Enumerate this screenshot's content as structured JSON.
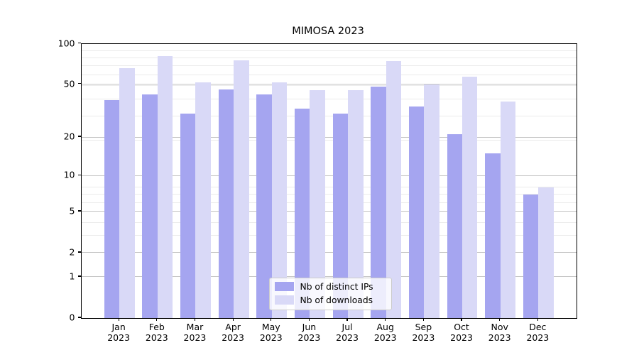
{
  "title": "MIMOSA 2023",
  "chart_data": {
    "type": "bar",
    "title": "MIMOSA 2023",
    "scale": "log1p",
    "categories": [
      "Jan 2023",
      "Feb 2023",
      "Mar 2023",
      "Apr 2023",
      "May 2023",
      "Jun 2023",
      "Jul 2023",
      "Aug 2023",
      "Sep 2023",
      "Oct 2023",
      "Nov 2023",
      "Dec 2023"
    ],
    "series": [
      {
        "name": "Nb of distinct IPs",
        "key": "distinct-ips",
        "color": "#a5a5f0",
        "values": [
          38,
          42,
          30,
          46,
          42,
          33,
          30,
          48,
          34,
          21,
          15,
          7
        ]
      },
      {
        "name": "Nb of downloads",
        "key": "downloads",
        "color": "#d9d9f7",
        "values": [
          66,
          81,
          52,
          75,
          52,
          45,
          45,
          74,
          50,
          57,
          37,
          8
        ]
      }
    ],
    "y_ticks": [
      100,
      50,
      20,
      10,
      5,
      2,
      1,
      0
    ],
    "y_minor_gridlines": [
      1,
      2,
      3,
      4,
      5,
      6,
      7,
      8,
      19,
      29,
      39,
      49,
      59,
      69,
      79,
      89
    ],
    "y_major_gridlines": [
      1,
      2,
      5,
      10,
      20,
      50
    ],
    "ylim": [
      0,
      100
    ],
    "xlabel": "",
    "ylabel": "",
    "grid": "both",
    "legend_position": "lower center"
  },
  "colors": {
    "distinct_ips": "#a5a5f0",
    "downloads": "#d9d9f7",
    "grid_major": "#c4c4c4",
    "grid_minor": "#ebebeb",
    "axis": "#000000",
    "legend_border": "#cccccc"
  }
}
